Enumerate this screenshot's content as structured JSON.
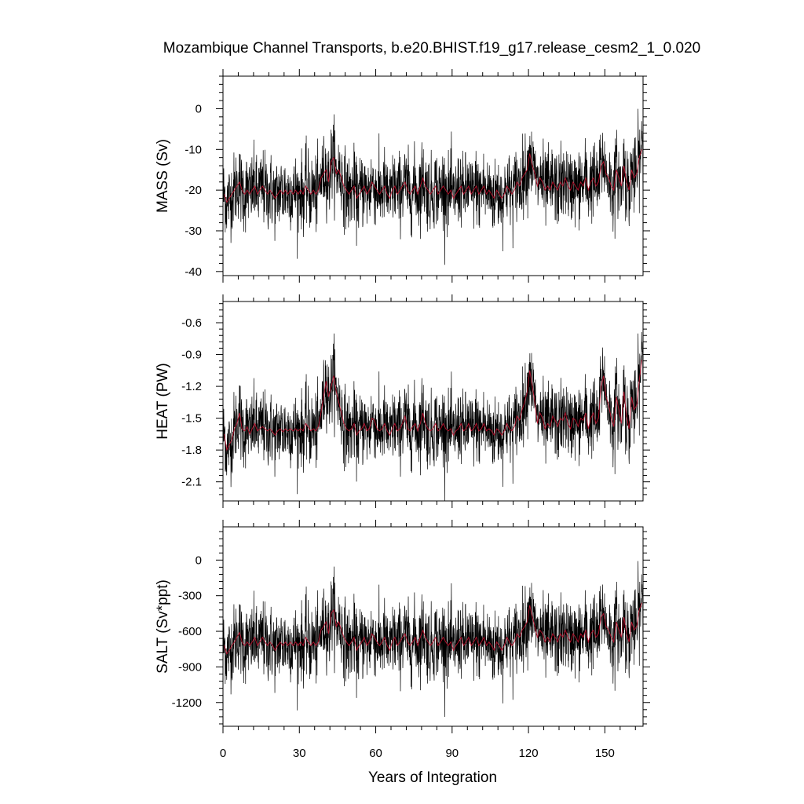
{
  "chart_data": {
    "type": "line",
    "title": "Mozambique Channel Transports, b.e20.BHIST.f19_g17.release_cesm2_1_0.020",
    "xlabel": "Years of Integration",
    "xlim": [
      0,
      165
    ],
    "xticks": [
      0,
      30,
      60,
      90,
      120,
      150
    ],
    "xtick_labels": [
      "0",
      "30",
      "60",
      "90",
      "120",
      "150"
    ],
    "series_legend": {
      "monthly": "black",
      "annual_mean": "red"
    },
    "colors": {
      "raw": "#000000",
      "smooth": "#c8102e"
    },
    "panels": [
      {
        "name": "mass",
        "ylabel": "MASS (Sv)",
        "ylim": [
          -41,
          8
        ],
        "yticks": [
          0,
          -10,
          -20,
          -30,
          -40
        ],
        "ytick_labels": [
          "0",
          "-10",
          "-20",
          "-30",
          "-40"
        ],
        "mean": -20.5,
        "std": 4.8,
        "annual_mean": [
          -21,
          -23,
          -22,
          -21,
          -20,
          -19,
          -18,
          -20,
          -21,
          -20,
          -21,
          -20,
          -19,
          -21,
          -20,
          -19,
          -20,
          -21,
          -20,
          -21,
          -22,
          -21,
          -20,
          -21,
          -20,
          -21,
          -20,
          -21,
          -20,
          -21,
          -20,
          -21,
          -19,
          -20,
          -21,
          -20,
          -21,
          -20,
          -17,
          -16,
          -15,
          -18,
          -13,
          -12,
          -16,
          -15,
          -17,
          -19,
          -20,
          -21,
          -20,
          -19,
          -22,
          -21,
          -20,
          -19,
          -21,
          -20,
          -18,
          -19,
          -20,
          -21,
          -20,
          -19,
          -21,
          -22,
          -20,
          -19,
          -21,
          -20,
          -19,
          -18,
          -20,
          -21,
          -20,
          -19,
          -21,
          -19,
          -17,
          -19,
          -20,
          -21,
          -20,
          -19,
          -21,
          -20,
          -19,
          -20,
          -21,
          -20,
          -22,
          -21,
          -20,
          -19,
          -21,
          -20,
          -19,
          -21,
          -20,
          -19,
          -21,
          -20,
          -19,
          -21,
          -20,
          -21,
          -22,
          -20,
          -21,
          -22,
          -21,
          -19,
          -20,
          -21,
          -20,
          -18,
          -19,
          -17,
          -16,
          -15,
          -11,
          -14,
          -16,
          -19,
          -17,
          -18,
          -20,
          -19,
          -20,
          -18,
          -19,
          -20,
          -18,
          -19,
          -17,
          -19,
          -20,
          -18,
          -19,
          -20,
          -18,
          -19,
          -17,
          -20,
          -18,
          -17,
          -19,
          -18,
          -14,
          -13,
          -16,
          -17,
          -19,
          -20,
          -15,
          -17,
          -19,
          -14,
          -18,
          -20,
          -15,
          -17,
          -16,
          -12,
          -10
        ]
      },
      {
        "name": "heat",
        "ylabel": "HEAT (PW)",
        "ylim": [
          -2.28,
          -0.4
        ],
        "yticks": [
          -0.6,
          -0.9,
          -1.2,
          -1.5,
          -1.8,
          -2.1
        ],
        "ytick_labels": [
          "-0.6",
          "-0.9",
          "-1.2",
          "-1.5",
          "-1.8",
          "-2.1"
        ],
        "mean": -1.58,
        "std": 0.18,
        "annual_mean": [
          -1.65,
          -1.8,
          -1.75,
          -1.7,
          -1.6,
          -1.55,
          -1.45,
          -1.6,
          -1.62,
          -1.58,
          -1.65,
          -1.6,
          -1.55,
          -1.62,
          -1.6,
          -1.58,
          -1.6,
          -1.62,
          -1.6,
          -1.63,
          -1.66,
          -1.62,
          -1.6,
          -1.63,
          -1.6,
          -1.62,
          -1.6,
          -1.62,
          -1.6,
          -1.62,
          -1.6,
          -1.62,
          -1.55,
          -1.58,
          -1.62,
          -1.6,
          -1.62,
          -1.58,
          -1.45,
          -1.3,
          -1.15,
          -1.3,
          -1.2,
          -1.1,
          -1.25,
          -1.35,
          -1.45,
          -1.55,
          -1.6,
          -1.62,
          -1.6,
          -1.55,
          -1.66,
          -1.62,
          -1.6,
          -1.55,
          -1.62,
          -1.6,
          -1.5,
          -1.52,
          -1.6,
          -1.62,
          -1.6,
          -1.55,
          -1.62,
          -1.66,
          -1.6,
          -1.55,
          -1.62,
          -1.6,
          -1.55,
          -1.48,
          -1.6,
          -1.62,
          -1.58,
          -1.55,
          -1.62,
          -1.55,
          -1.45,
          -1.55,
          -1.6,
          -1.62,
          -1.6,
          -1.55,
          -1.62,
          -1.6,
          -1.55,
          -1.6,
          -1.62,
          -1.6,
          -1.66,
          -1.62,
          -1.6,
          -1.55,
          -1.62,
          -1.6,
          -1.55,
          -1.62,
          -1.6,
          -1.55,
          -1.62,
          -1.6,
          -1.55,
          -1.62,
          -1.6,
          -1.62,
          -1.66,
          -1.6,
          -1.62,
          -1.66,
          -1.62,
          -1.55,
          -1.6,
          -1.62,
          -1.58,
          -1.48,
          -1.52,
          -1.42,
          -1.35,
          -1.25,
          -1.05,
          -1.2,
          -1.35,
          -1.55,
          -1.45,
          -1.5,
          -1.6,
          -1.55,
          -1.58,
          -1.48,
          -1.52,
          -1.58,
          -1.5,
          -1.52,
          -1.45,
          -1.55,
          -1.6,
          -1.5,
          -1.52,
          -1.58,
          -1.5,
          -1.52,
          -1.45,
          -1.6,
          -1.5,
          -1.45,
          -1.55,
          -1.5,
          -1.2,
          -1.1,
          -1.3,
          -1.38,
          -1.5,
          -1.58,
          -1.3,
          -1.42,
          -1.55,
          -1.25,
          -1.48,
          -1.6,
          -1.3,
          -1.42,
          -1.38,
          -1.15,
          -0.95
        ]
      },
      {
        "name": "salt",
        "ylabel": "SALT (Sv*ppt)",
        "ylim": [
          -1400,
          280
        ],
        "yticks": [
          0,
          -300,
          -600,
          -900,
          -1200
        ],
        "ytick_labels": [
          "0",
          "-300",
          "-600",
          "-900",
          "-1200"
        ],
        "mean": -700,
        "std": 165,
        "annual_mean": [
          -720,
          -790,
          -760,
          -720,
          -690,
          -650,
          -610,
          -690,
          -720,
          -690,
          -720,
          -690,
          -650,
          -720,
          -690,
          -650,
          -690,
          -720,
          -690,
          -720,
          -760,
          -720,
          -690,
          -720,
          -690,
          -720,
          -690,
          -720,
          -690,
          -720,
          -690,
          -720,
          -650,
          -690,
          -720,
          -690,
          -720,
          -690,
          -590,
          -560,
          -520,
          -620,
          -450,
          -420,
          -560,
          -520,
          -590,
          -650,
          -690,
          -720,
          -690,
          -650,
          -760,
          -720,
          -690,
          -650,
          -720,
          -690,
          -620,
          -650,
          -690,
          -720,
          -690,
          -650,
          -720,
          -760,
          -690,
          -650,
          -720,
          -690,
          -650,
          -620,
          -690,
          -720,
          -690,
          -650,
          -720,
          -650,
          -590,
          -650,
          -690,
          -720,
          -690,
          -650,
          -720,
          -690,
          -650,
          -690,
          -720,
          -690,
          -760,
          -720,
          -690,
          -650,
          -720,
          -690,
          -650,
          -720,
          -690,
          -650,
          -720,
          -690,
          -650,
          -720,
          -690,
          -720,
          -760,
          -690,
          -720,
          -760,
          -720,
          -650,
          -690,
          -720,
          -690,
          -620,
          -650,
          -590,
          -560,
          -520,
          -380,
          -480,
          -560,
          -650,
          -590,
          -620,
          -690,
          -650,
          -690,
          -620,
          -650,
          -690,
          -620,
          -650,
          -590,
          -650,
          -690,
          -620,
          -650,
          -690,
          -620,
          -650,
          -590,
          -690,
          -620,
          -590,
          -650,
          -620,
          -480,
          -450,
          -560,
          -590,
          -650,
          -690,
          -520,
          -590,
          -650,
          -480,
          -620,
          -690,
          -520,
          -590,
          -560,
          -420,
          -360
        ]
      }
    ]
  }
}
